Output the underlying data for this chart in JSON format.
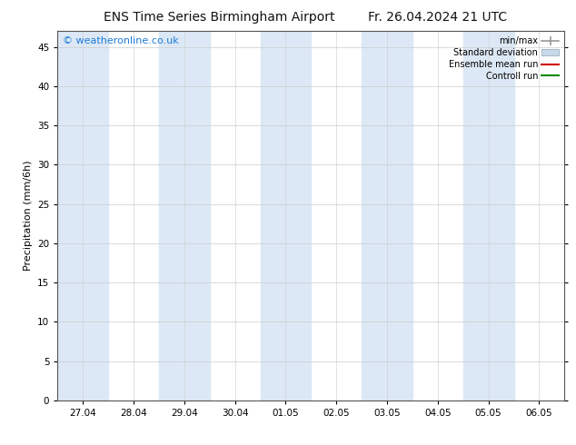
{
  "title": "ENS Time Series Birmingham Airport",
  "date_label": "Fr. 26.04.2024 21 UTC",
  "ylabel": "Precipitation (mm/6h)",
  "watermark": "© weatheronline.co.uk",
  "watermark_color": "#1e7bd9",
  "background_color": "#ffffff",
  "plot_bg_color": "#ffffff",
  "ylim": [
    0,
    47
  ],
  "yticks": [
    0,
    5,
    10,
    15,
    20,
    25,
    30,
    35,
    40,
    45
  ],
  "xtick_labels": [
    "27.04",
    "28.04",
    "29.04",
    "30.04",
    "01.05",
    "02.05",
    "03.05",
    "04.05",
    "05.05",
    "06.05"
  ],
  "xtick_positions": [
    0,
    1,
    2,
    3,
    4,
    5,
    6,
    7,
    8,
    9
  ],
  "xlim": [
    -0.5,
    9.5
  ],
  "shaded_bands": [
    [
      -0.5,
      0.5
    ],
    [
      1.5,
      2.5
    ],
    [
      3.5,
      4.5
    ],
    [
      5.5,
      6.5
    ],
    [
      7.5,
      8.5
    ]
  ],
  "shade_color": "#dce8f5",
  "legend_entries": [
    {
      "label": "min/max",
      "color": "#aaaaaa",
      "style": "errorbar"
    },
    {
      "label": "Standard deviation",
      "color": "#c8d8e8",
      "style": "fill"
    },
    {
      "label": "Ensemble mean run",
      "color": "#cc0000",
      "style": "line"
    },
    {
      "label": "Controll run",
      "color": "#008800",
      "style": "line"
    }
  ],
  "title_fontsize": 10,
  "axis_label_fontsize": 8,
  "tick_fontsize": 7.5,
  "watermark_fontsize": 8,
  "grid_color": "#cccccc",
  "spine_color": "#555555"
}
